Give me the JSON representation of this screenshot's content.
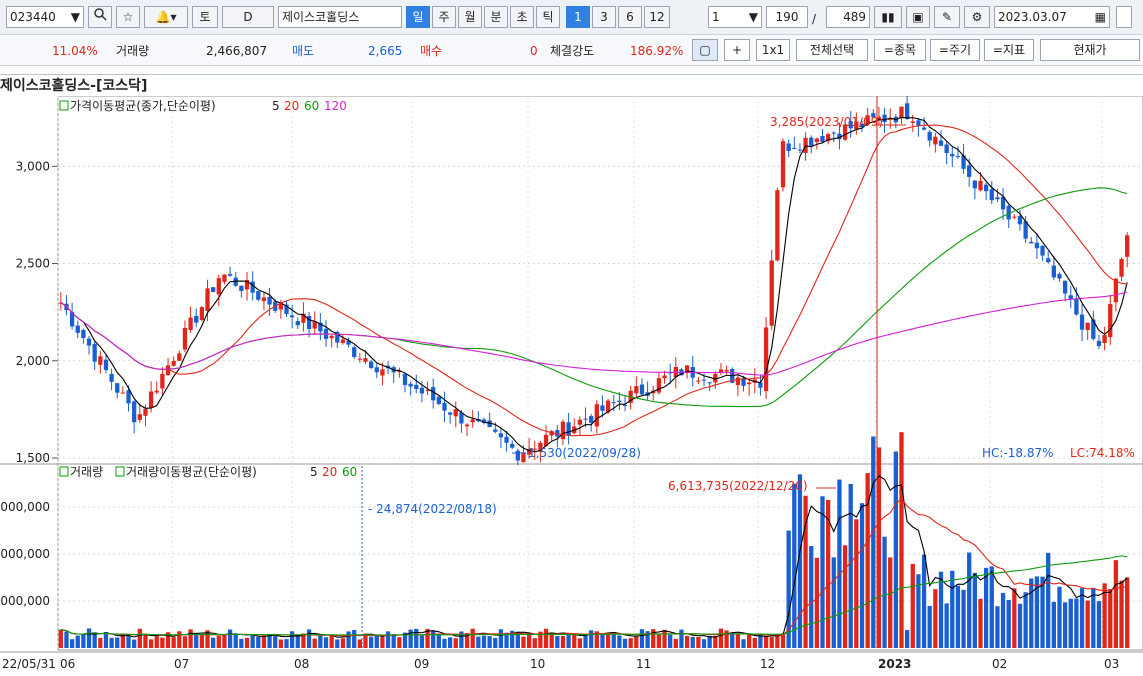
{
  "toolbar": {
    "code": "023440",
    "code_dropdown": "▼",
    "tomorrow_label": "토",
    "d_label": "D",
    "stock_name": "제이스코홀딩스",
    "periods": [
      "일",
      "주",
      "월",
      "분",
      "초",
      "틱"
    ],
    "active_period": "일",
    "intervals": [
      "1",
      "3",
      "6",
      "12"
    ],
    "active_interval": "1",
    "unit_value": "1",
    "count_value": "190",
    "slash": "/",
    "total_value": "489",
    "date_value": "2023.03.07"
  },
  "quote": {
    "change_rate": "11.04%",
    "volume_label": "거래량",
    "volume_value": "2,466,807",
    "sell_label": "매도",
    "sell_value": "2,665",
    "buy_label": "매수",
    "buy_value": "0",
    "strength_label": "체결강도",
    "strength_value": "186.92%",
    "plus_label": "+",
    "one_by_one_label": "1x1",
    "select_all_label": "전체선택",
    "item_label": "=종목",
    "period_label": "=주기",
    "indicator_label": "=지표",
    "current_price_label": "현재가"
  },
  "title": "제이스코홀딩스-[코스닥]",
  "price_legend": {
    "text": "가격이동평균(종가,단순이평)",
    "periods": [
      "5",
      "20",
      "60",
      "120"
    ]
  },
  "volume_legend": {
    "text1": "거래량",
    "text2": "거래량이동평균(단순이평)",
    "periods": [
      "5",
      "20",
      "60"
    ]
  },
  "annotations": {
    "high": "3,285(2023/01/09)",
    "low": "1,530(2022/09/28)",
    "vol_high": "6,613,735(2022/12/20)",
    "vol_low": "24,874(2022/08/18)",
    "hc": "HC:-18.87%",
    "lc": "LC:74.18%"
  },
  "x_labels": [
    "22/05/31",
    "06",
    "07",
    "08",
    "09",
    "10",
    "11",
    "12",
    "2023",
    "02",
    "03"
  ],
  "price_ticks": [
    "3,000",
    "2,500",
    "2,000",
    "1,500"
  ],
  "vol_ticks": [
    "000,000",
    "000,000",
    "000,000"
  ],
  "colors": {
    "up": "#e0261a",
    "down": "#1a5fd1",
    "ma5": "#000000",
    "ma20": "#e0261a",
    "ma60": "#0c9b0c",
    "ma120": "#d61fd6"
  },
  "chart_data": {
    "type": "candlestick",
    "price_ylim": [
      1500,
      3300
    ],
    "key_points": [
      {
        "date": "2022-05-31",
        "close": 2300
      },
      {
        "date": "2022-06-20",
        "close": 1700
      },
      {
        "date": "2022-07-12",
        "close": 2450
      },
      {
        "date": "2022-08-18",
        "close": 2030
      },
      {
        "date": "2022-09-28",
        "close": 1530
      },
      {
        "date": "2022-11-10",
        "close": 1950
      },
      {
        "date": "2022-12-01",
        "close": 1900
      },
      {
        "date": "2022-12-06",
        "close": 3100
      },
      {
        "date": "2023-01-09",
        "close": 3285
      },
      {
        "date": "2023-02-10",
        "close": 2600
      },
      {
        "date": "2023-02-28",
        "close": 2050
      },
      {
        "date": "2023-03-07",
        "close": 2650
      }
    ]
  }
}
